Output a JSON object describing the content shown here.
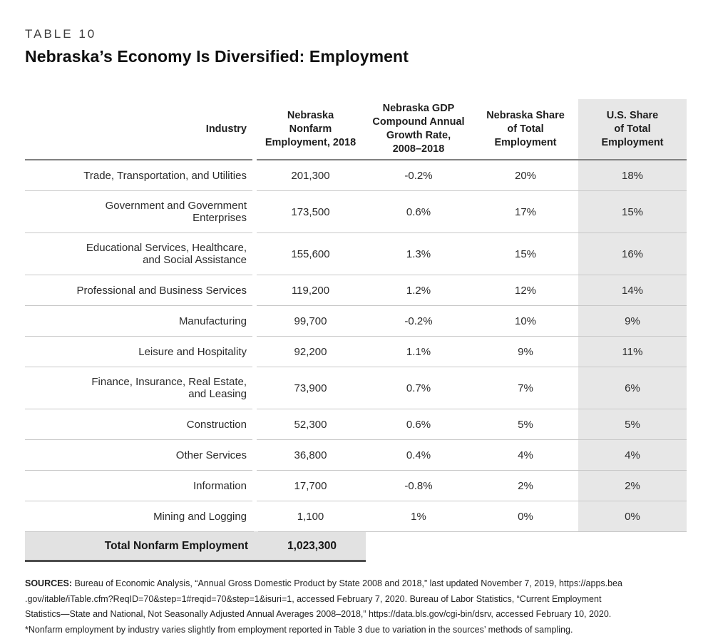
{
  "colors": {
    "highlight_column_bg": "#e7e7e7",
    "total_row_bg": "#e2e2e2",
    "header_rule": "#818181",
    "row_rule": "#c8c8c8",
    "total_rule": "#4d4d4d",
    "text": "#2b2b2b"
  },
  "header": {
    "kicker": "TABLE 10",
    "title": "Nebraska’s Economy Is Diversified: Employment"
  },
  "table": {
    "columns": {
      "industry": "Industry",
      "employment": "Nebraska\nNonfarm\nEmployment, 2018",
      "gdp_growth": "Nebraska GDP\nCompound Annual\nGrowth Rate,\n2008–2018",
      "ne_share": "Nebraska Share\nof Total\nEmployment",
      "us_share": "U.S. Share\nof Total\nEmployment"
    },
    "rows": [
      {
        "industry": "Trade, Transportation, and Utilities",
        "employment": "201,300",
        "gdp_growth": "-0.2%",
        "ne_share": "20%",
        "us_share": "18%"
      },
      {
        "industry": "Government and Government\nEnterprises",
        "employment": "173,500",
        "gdp_growth": "0.6%",
        "ne_share": "17%",
        "us_share": "15%"
      },
      {
        "industry": "Educational Services, Healthcare,\nand Social Assistance",
        "employment": "155,600",
        "gdp_growth": "1.3%",
        "ne_share": "15%",
        "us_share": "16%"
      },
      {
        "industry": "Professional and Business Services",
        "employment": "119,200",
        "gdp_growth": "1.2%",
        "ne_share": "12%",
        "us_share": "14%"
      },
      {
        "industry": "Manufacturing",
        "employment": "99,700",
        "gdp_growth": "-0.2%",
        "ne_share": "10%",
        "us_share": "9%"
      },
      {
        "industry": "Leisure and Hospitality",
        "employment": "92,200",
        "gdp_growth": "1.1%",
        "ne_share": "9%",
        "us_share": "11%"
      },
      {
        "industry": "Finance, Insurance, Real Estate,\nand Leasing",
        "employment": "73,900",
        "gdp_growth": "0.7%",
        "ne_share": "7%",
        "us_share": "6%"
      },
      {
        "industry": "Construction",
        "employment": "52,300",
        "gdp_growth": "0.6%",
        "ne_share": "5%",
        "us_share": "5%"
      },
      {
        "industry": "Other Services",
        "employment": "36,800",
        "gdp_growth": "0.4%",
        "ne_share": "4%",
        "us_share": "4%"
      },
      {
        "industry": "Information",
        "employment": "17,700",
        "gdp_growth": "-0.8%",
        "ne_share": "2%",
        "us_share": "2%"
      },
      {
        "industry": "Mining and Logging",
        "employment": "1,100",
        "gdp_growth": "1%",
        "ne_share": "0%",
        "us_share": "0%"
      }
    ],
    "total": {
      "label": "Total Nonfarm Employment",
      "value": "1,023,300"
    }
  },
  "sources": {
    "label": "SOURCES:",
    "lines": [
      "Bureau of Economic Analysis, “Annual Gross Domestic Product by State 2008 and 2018,” last updated November 7, 2019, https://apps.bea",
      ".gov/itable/iTable.cfm?ReqID=70&step=1#reqid=70&step=1&isuri=1, accessed February 7, 2020. Bureau of Labor Statistics, “Current Employment",
      "Statistics—State and National, Not Seasonally Adjusted Annual Averages 2008–2018,” https://data.bls.gov/cgi-bin/dsrv, accessed February 10, 2020.",
      "*Nonfarm employment by industry varies slightly from employment reported in Table 3 due to variation in the sources’ methods of sampling."
    ]
  },
  "chart_data": {
    "type": "table",
    "title": "Nebraska’s Economy Is Diversified: Employment",
    "columns": [
      "Industry",
      "Nebraska Nonfarm Employment, 2018",
      "Nebraska GDP Compound Annual Growth Rate, 2008–2018",
      "Nebraska Share of Total Employment",
      "U.S. Share of Total Employment"
    ],
    "rows": [
      [
        "Trade, Transportation, and Utilities",
        201300,
        -0.2,
        20,
        18
      ],
      [
        "Government and Government Enterprises",
        173500,
        0.6,
        17,
        15
      ],
      [
        "Educational Services, Healthcare, and Social Assistance",
        155600,
        1.3,
        15,
        16
      ],
      [
        "Professional and Business Services",
        119200,
        1.2,
        12,
        14
      ],
      [
        "Manufacturing",
        99700,
        -0.2,
        10,
        9
      ],
      [
        "Leisure and Hospitality",
        92200,
        1.1,
        9,
        11
      ],
      [
        "Finance, Insurance, Real Estate, and Leasing",
        73900,
        0.7,
        7,
        6
      ],
      [
        "Construction",
        52300,
        0.6,
        5,
        5
      ],
      [
        "Other Services",
        36800,
        0.4,
        4,
        4
      ],
      [
        "Information",
        17700,
        -0.8,
        2,
        2
      ],
      [
        "Mining and Logging",
        1100,
        1,
        0,
        0
      ]
    ],
    "total_row": [
      "Total Nonfarm Employment",
      1023300
    ]
  }
}
